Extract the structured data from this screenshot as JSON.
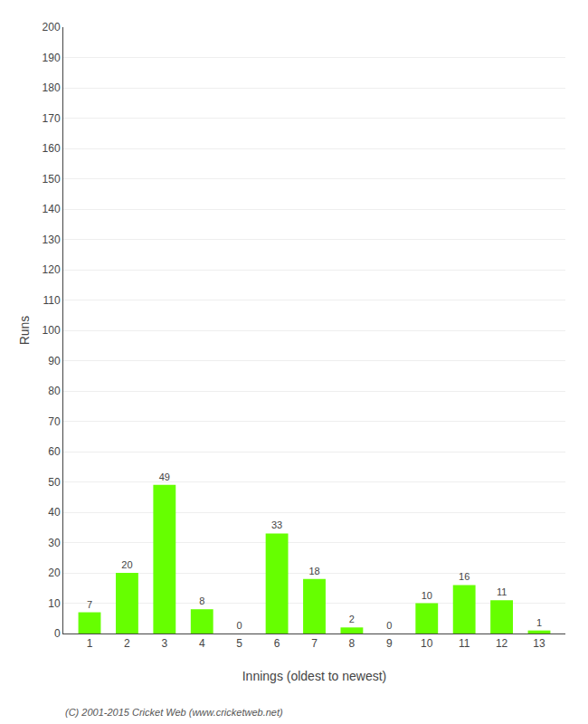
{
  "chart_data": {
    "type": "bar",
    "xlabel": "Innings (oldest to newest)",
    "ylabel": "Runs",
    "categories": [
      "1",
      "2",
      "3",
      "4",
      "5",
      "6",
      "7",
      "8",
      "9",
      "10",
      "11",
      "12",
      "13"
    ],
    "values": [
      7,
      20,
      49,
      8,
      0,
      33,
      18,
      2,
      0,
      10,
      16,
      11,
      1
    ],
    "color": "#66ff00",
    "ylim": [
      0,
      200
    ],
    "yticks": [
      0,
      10,
      20,
      30,
      40,
      50,
      60,
      70,
      80,
      90,
      100,
      110,
      120,
      130,
      140,
      150,
      160,
      170,
      180,
      190,
      200
    ],
    "grid": true,
    "data_labels": true,
    "annotations": [
      "(C) 2001-2015 Cricket Web (www.cricketweb.net)"
    ]
  }
}
